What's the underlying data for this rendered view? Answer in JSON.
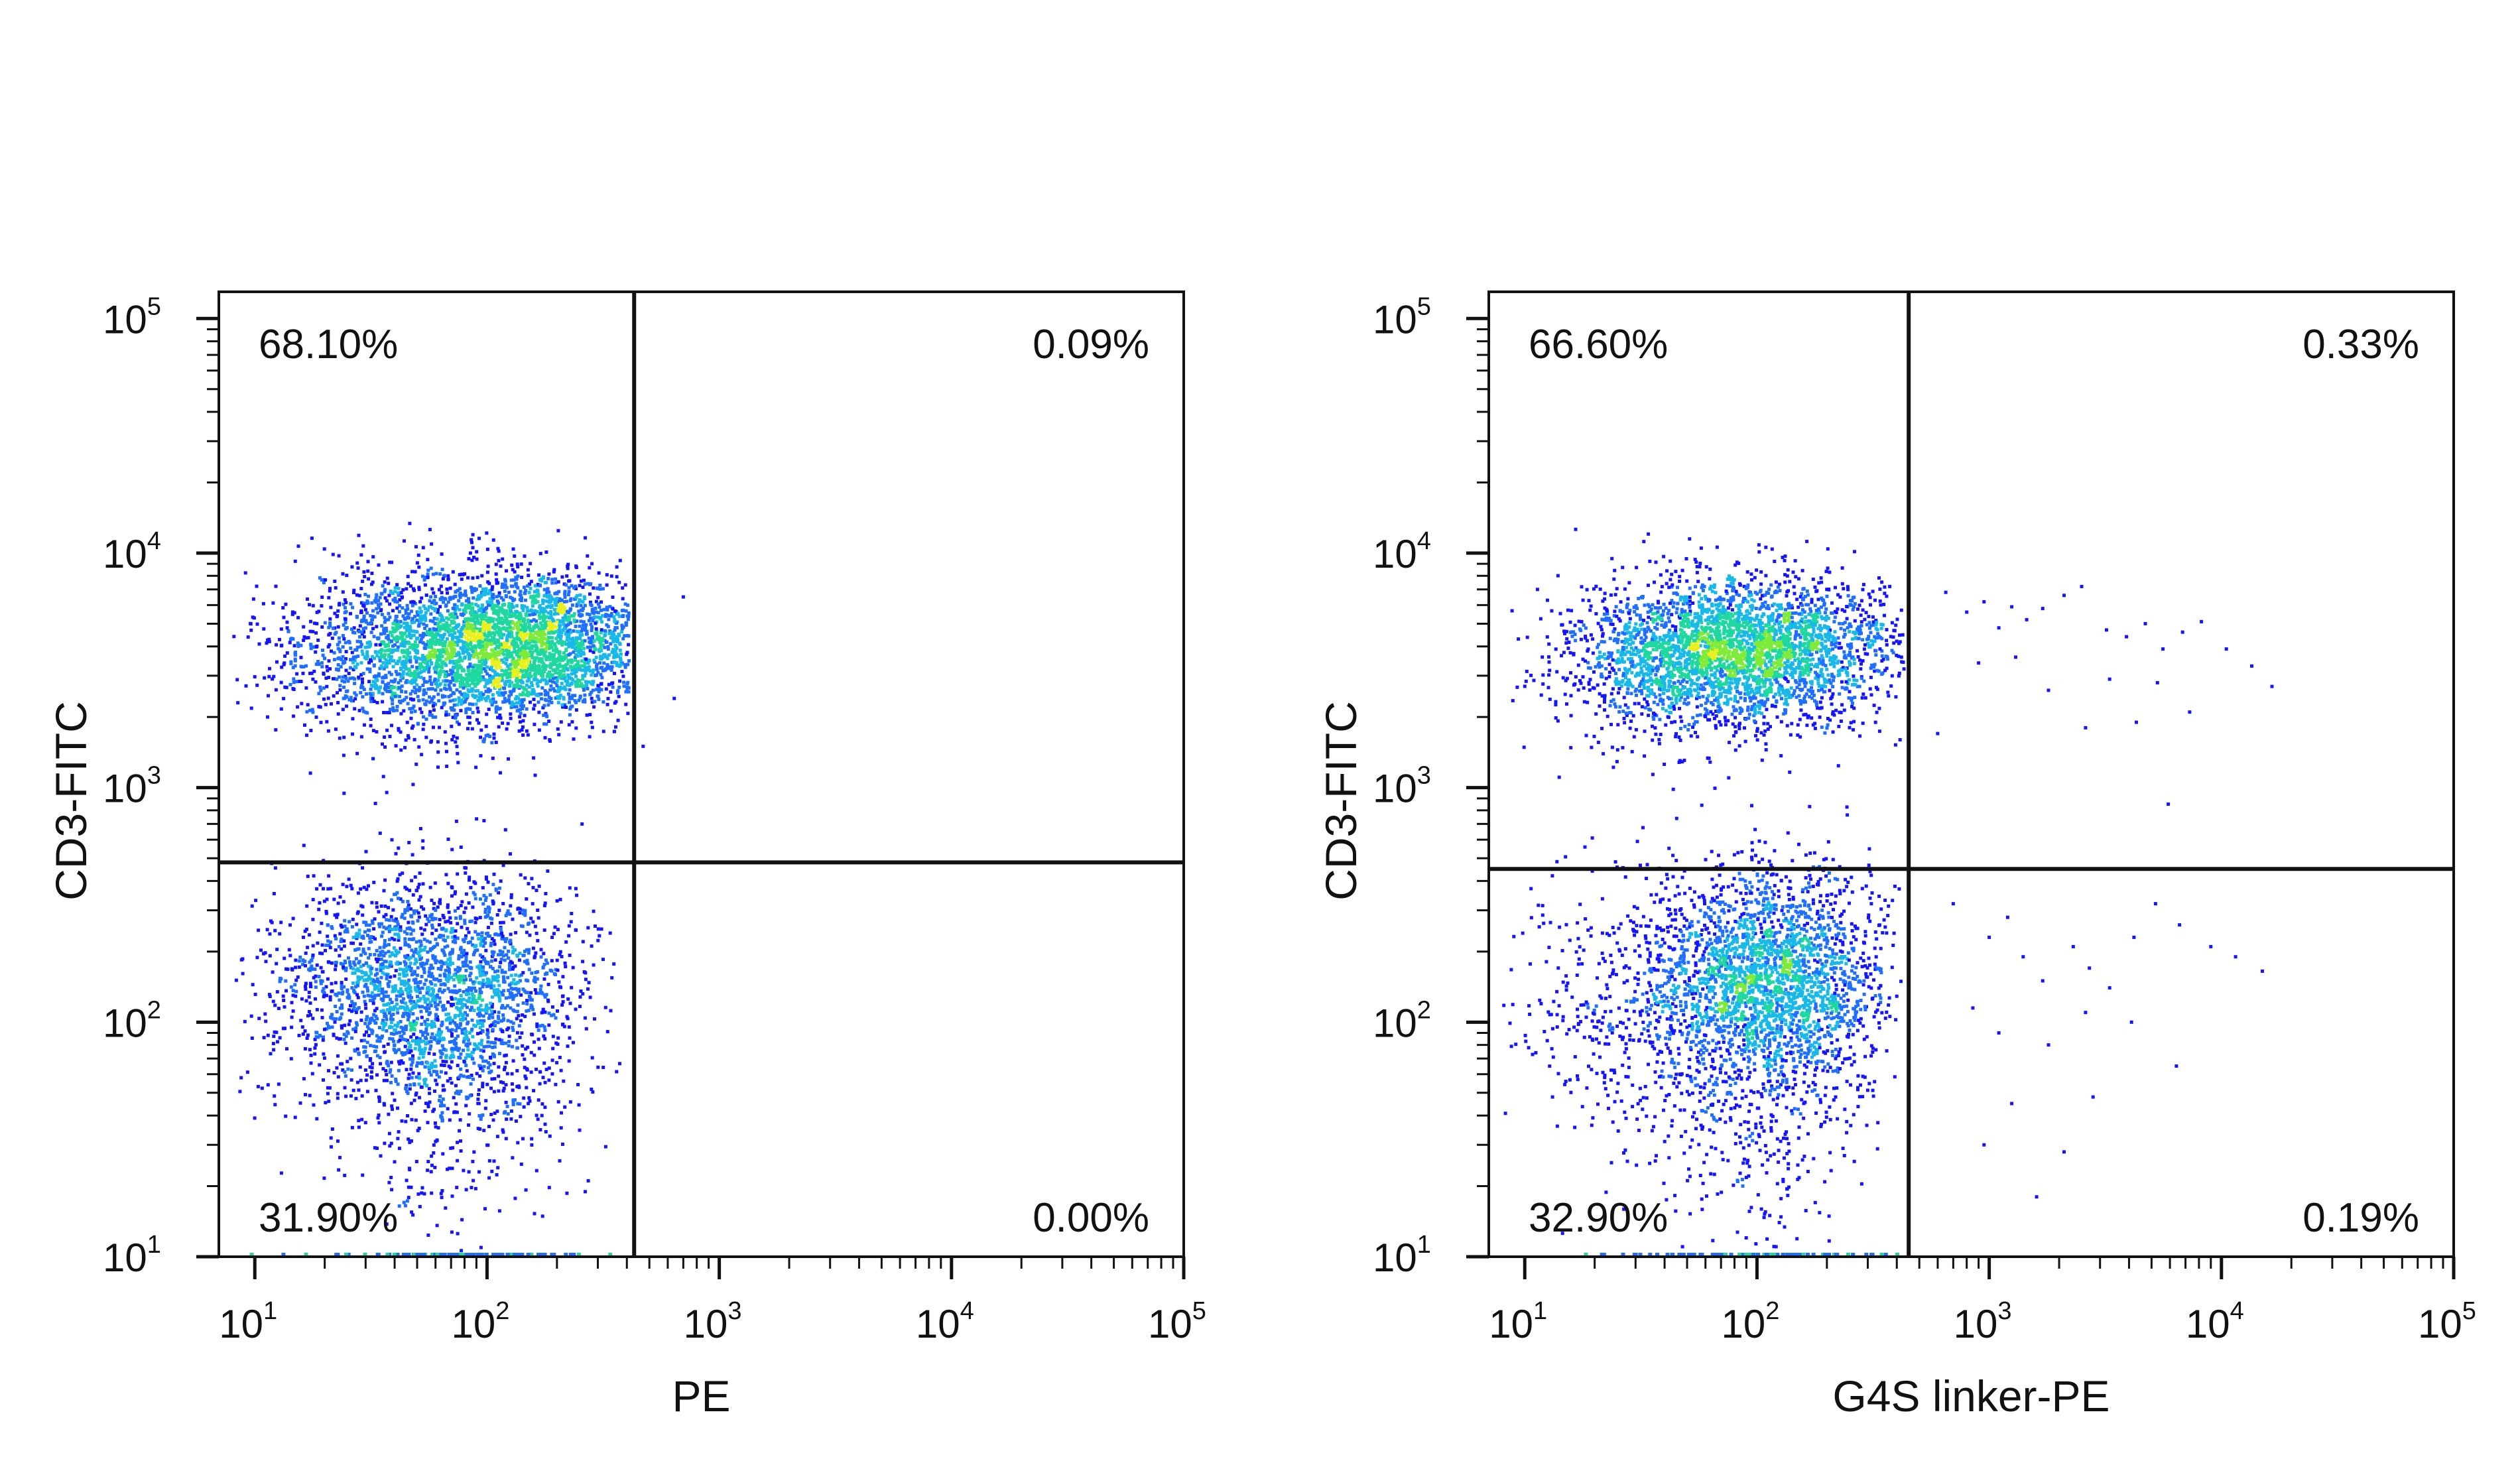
{
  "chart_data": [
    {
      "type": "scatter",
      "xlabel": "PE",
      "ylabel": "CD3-FITC",
      "x_scale": "log",
      "y_scale": "log",
      "xlim": [
        7,
        100000
      ],
      "ylim": [
        10,
        130000
      ],
      "x_ticks": [
        {
          "base": "10",
          "exp": "1"
        },
        {
          "base": "10",
          "exp": "2"
        },
        {
          "base": "10",
          "exp": "3"
        },
        {
          "base": "10",
          "exp": "4"
        },
        {
          "base": "10",
          "exp": "5"
        }
      ],
      "y_ticks": [
        {
          "base": "10",
          "exp": "1"
        },
        {
          "base": "10",
          "exp": "2"
        },
        {
          "base": "10",
          "exp": "3"
        },
        {
          "base": "10",
          "exp": "4"
        },
        {
          "base": "10",
          "exp": "5"
        }
      ],
      "gate": {
        "x": 430,
        "y": 480
      },
      "quadrants": {
        "upper_left": "68.10%",
        "upper_right": "0.09%",
        "lower_left": "31.90%",
        "lower_right": "0.00%"
      },
      "populations": [
        {
          "cx": 70,
          "cy": 3800,
          "sx": 0.36,
          "sy": 0.17,
          "n": 2600,
          "xmin": 8,
          "xmax": 410
        },
        {
          "cx": 170,
          "cy": 4100,
          "sx": 0.28,
          "sy": 0.14,
          "n": 1700,
          "xmin": 8,
          "xmax": 410
        },
        {
          "cx": 55,
          "cy": 140,
          "sx": 0.33,
          "sy": 0.25,
          "n": 2300,
          "xmin": 8,
          "xmax": 380
        },
        {
          "cx": 70,
          "cy": 60,
          "sx": 0.28,
          "sy": 0.35,
          "n": 500,
          "xmin": 8,
          "xmax": 380
        }
      ],
      "rare_events": [
        {
          "x": 700,
          "y": 6500
        },
        {
          "x": 640,
          "y": 2400
        },
        {
          "x": 470,
          "y": 1500
        }
      ],
      "colormap": [
        "#1414ff",
        "#1e6eff",
        "#18b8e8",
        "#1fd8a0",
        "#7eea3a",
        "#e8f020"
      ]
    },
    {
      "type": "scatter",
      "xlabel": "G4S linker-PE",
      "ylabel": "CD3-FITC",
      "x_scale": "log",
      "y_scale": "log",
      "xlim": [
        7,
        100000
      ],
      "ylim": [
        10,
        130000
      ],
      "x_ticks": [
        {
          "base": "10",
          "exp": "1"
        },
        {
          "base": "10",
          "exp": "2"
        },
        {
          "base": "10",
          "exp": "3"
        },
        {
          "base": "10",
          "exp": "4"
        },
        {
          "base": "10",
          "exp": "5"
        }
      ],
      "y_ticks": [
        {
          "base": "10",
          "exp": "1"
        },
        {
          "base": "10",
          "exp": "2"
        },
        {
          "base": "10",
          "exp": "3"
        },
        {
          "base": "10",
          "exp": "4"
        },
        {
          "base": "10",
          "exp": "5"
        }
      ],
      "gate": {
        "x": 450,
        "y": 450
      },
      "quadrants": {
        "upper_left": "66.60%",
        "upper_right": "0.33%",
        "lower_left": "32.90%",
        "lower_right": "0.19%"
      },
      "populations": [
        {
          "cx": 100,
          "cy": 3900,
          "sx": 0.32,
          "sy": 0.15,
          "n": 2500,
          "xmin": 8,
          "xmax": 430
        },
        {
          "cx": 45,
          "cy": 3600,
          "sx": 0.28,
          "sy": 0.17,
          "n": 900,
          "xmin": 8,
          "xmax": 430
        },
        {
          "cx": 120,
          "cy": 150,
          "sx": 0.24,
          "sy": 0.23,
          "n": 2200,
          "xmin": 8,
          "xmax": 420
        },
        {
          "cx": 40,
          "cy": 120,
          "sx": 0.3,
          "sy": 0.3,
          "n": 700,
          "xmin": 8,
          "xmax": 420
        },
        {
          "cx": 110,
          "cy": 40,
          "sx": 0.22,
          "sy": 0.3,
          "n": 300,
          "xmin": 8,
          "xmax": 420
        }
      ],
      "rare_events": [
        {
          "x": 650,
          "y": 6800
        },
        {
          "x": 800,
          "y": 5600
        },
        {
          "x": 950,
          "y": 6200
        },
        {
          "x": 1100,
          "y": 4800
        },
        {
          "x": 1250,
          "y": 5900
        },
        {
          "x": 1450,
          "y": 5200
        },
        {
          "x": 1700,
          "y": 5800
        },
        {
          "x": 2100,
          "y": 6600
        },
        {
          "x": 2500,
          "y": 7200
        },
        {
          "x": 3200,
          "y": 4700
        },
        {
          "x": 3900,
          "y": 4400
        },
        {
          "x": 4700,
          "y": 5000
        },
        {
          "x": 5600,
          "y": 3900
        },
        {
          "x": 6800,
          "y": 4600
        },
        {
          "x": 8200,
          "y": 5100
        },
        {
          "x": 10500,
          "y": 3900
        },
        {
          "x": 13500,
          "y": 3300
        },
        {
          "x": 16500,
          "y": 2700
        },
        {
          "x": 900,
          "y": 3400
        },
        {
          "x": 1300,
          "y": 3600
        },
        {
          "x": 1800,
          "y": 2600
        },
        {
          "x": 2600,
          "y": 1800
        },
        {
          "x": 3300,
          "y": 2900
        },
        {
          "x": 4300,
          "y": 1900
        },
        {
          "x": 5300,
          "y": 2800
        },
        {
          "x": 7300,
          "y": 2100
        },
        {
          "x": 5900,
          "y": 850
        },
        {
          "x": 600,
          "y": 1700
        },
        {
          "x": 700,
          "y": 320
        },
        {
          "x": 1000,
          "y": 230
        },
        {
          "x": 1200,
          "y": 280
        },
        {
          "x": 1400,
          "y": 190
        },
        {
          "x": 1700,
          "y": 150
        },
        {
          "x": 2300,
          "y": 210
        },
        {
          "x": 2700,
          "y": 170
        },
        {
          "x": 3300,
          "y": 140
        },
        {
          "x": 4200,
          "y": 230
        },
        {
          "x": 5200,
          "y": 320
        },
        {
          "x": 6600,
          "y": 260
        },
        {
          "x": 9000,
          "y": 210
        },
        {
          "x": 11500,
          "y": 190
        },
        {
          "x": 15000,
          "y": 165
        },
        {
          "x": 2600,
          "y": 110
        },
        {
          "x": 4100,
          "y": 100
        },
        {
          "x": 6400,
          "y": 65
        },
        {
          "x": 1100,
          "y": 90
        },
        {
          "x": 1800,
          "y": 80
        },
        {
          "x": 850,
          "y": 115
        },
        {
          "x": 1250,
          "y": 45
        },
        {
          "x": 2800,
          "y": 48
        },
        {
          "x": 950,
          "y": 30
        },
        {
          "x": 1600,
          "y": 18
        },
        {
          "x": 2100,
          "y": 28
        }
      ],
      "colormap": [
        "#1414ff",
        "#1e6eff",
        "#18b8e8",
        "#1fd8a0",
        "#7eea3a",
        "#e8f020"
      ]
    }
  ]
}
